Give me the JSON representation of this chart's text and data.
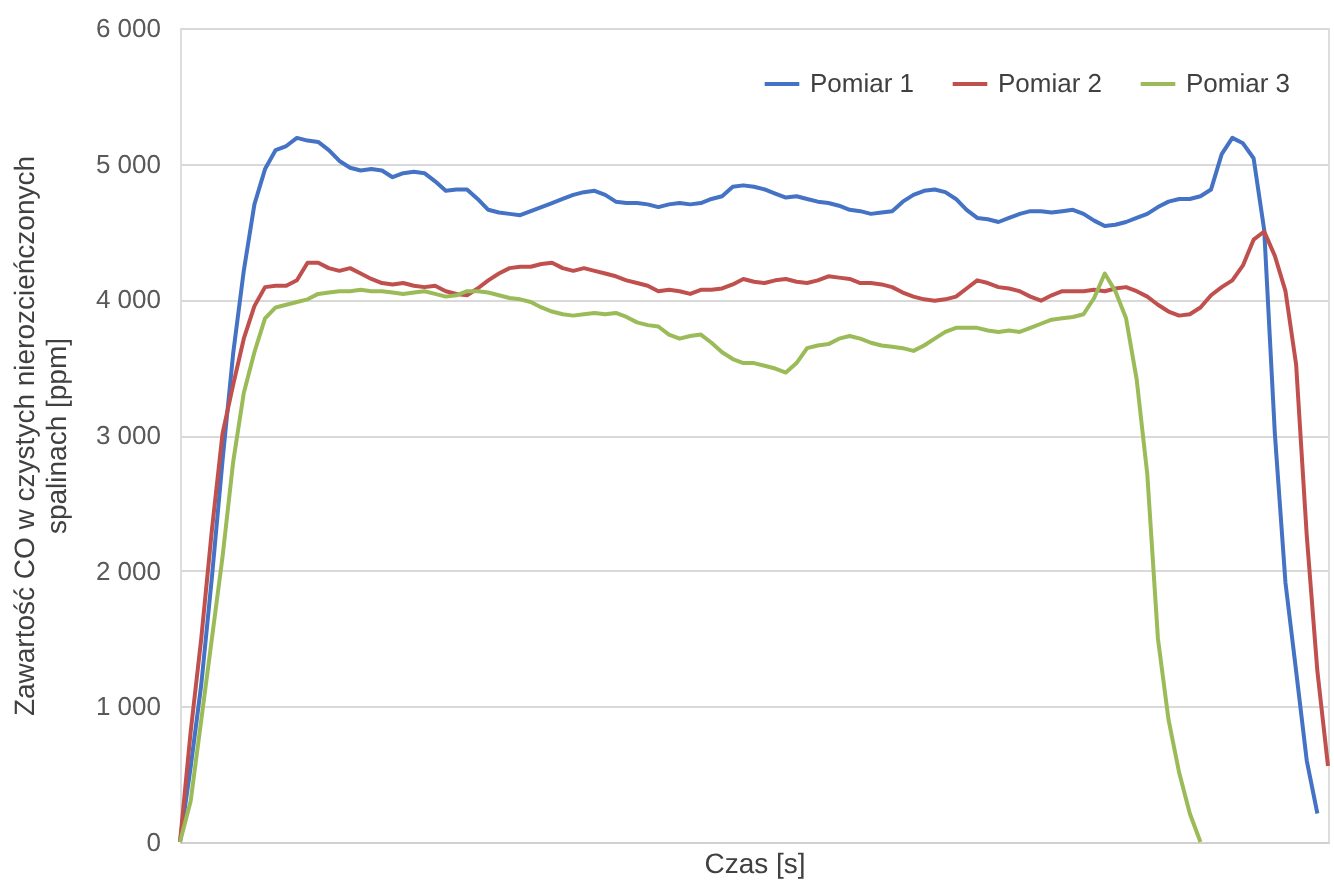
{
  "chart_data": {
    "type": "line",
    "xlabel": "Czas [s]",
    "ylabel": "Zawartość CO w czystych nierozcieńczonych spalinach [ppm]",
    "categories": [
      null,
      null,
      null,
      null,
      null,
      null,
      null,
      null,
      null,
      null,
      null,
      null,
      null,
      null,
      null,
      null,
      null,
      null,
      null,
      null,
      null,
      null,
      null,
      null,
      null,
      null,
      null,
      null,
      null,
      null,
      null,
      null,
      null,
      null,
      null,
      null,
      null,
      null,
      null,
      null,
      null,
      null,
      null,
      null,
      null,
      null,
      null,
      null,
      null,
      null,
      null,
      null,
      null,
      null,
      null,
      null,
      null,
      null,
      null,
      null,
      null,
      null,
      null,
      null,
      null,
      null,
      null,
      null,
      null,
      null,
      null,
      null,
      null,
      null,
      null,
      null,
      null,
      null,
      null,
      null,
      null,
      null,
      null,
      null,
      null,
      null,
      null,
      null,
      null,
      null,
      null,
      null,
      null,
      null,
      null,
      null,
      null,
      null,
      null,
      null,
      null,
      null,
      null,
      null,
      null,
      null,
      null,
      null,
      null
    ],
    "series": [
      {
        "name": "Pomiar 1",
        "color": "#4472c4",
        "values": [
          0,
          550,
          1160,
          1950,
          2810,
          3600,
          4210,
          4700,
          4960,
          5100,
          5130,
          5190,
          5170,
          5160,
          5100,
          5020,
          4970,
          4950,
          4960,
          4950,
          4900,
          4930,
          4940,
          4930,
          4870,
          4800,
          4810,
          4810,
          4740,
          4660,
          4640,
          4630,
          4620,
          4650,
          4680,
          4710,
          4740,
          4770,
          4790,
          4800,
          4770,
          4720,
          4710,
          4710,
          4700,
          4680,
          4700,
          4710,
          4700,
          4710,
          4740,
          4760,
          4830,
          4840,
          4830,
          4810,
          4780,
          4750,
          4760,
          4740,
          4720,
          4710,
          4690,
          4660,
          4650,
          4630,
          4640,
          4650,
          4720,
          4770,
          4800,
          4810,
          4790,
          4740,
          4660,
          4600,
          4590,
          4570,
          4600,
          4630,
          4650,
          4650,
          4640,
          4650,
          4660,
          4630,
          4580,
          4540,
          4550,
          4570,
          4600,
          4630,
          4680,
          4720,
          4740,
          4740,
          4760,
          4810,
          5070,
          5190,
          5150,
          5040,
          4510,
          3010,
          1910,
          1260,
          600,
          210,
          null
        ]
      },
      {
        "name": "Pomiar 2",
        "color": "#c0504d",
        "values": [
          0,
          810,
          1500,
          2300,
          3010,
          3370,
          3710,
          3950,
          4090,
          4100,
          4100,
          4140,
          4270,
          4270,
          4230,
          4210,
          4230,
          4190,
          4150,
          4120,
          4110,
          4120,
          4100,
          4090,
          4100,
          4060,
          4040,
          4030,
          4080,
          4140,
          4190,
          4230,
          4240,
          4240,
          4260,
          4270,
          4230,
          4210,
          4230,
          4210,
          4190,
          4170,
          4140,
          4120,
          4100,
          4060,
          4070,
          4060,
          4040,
          4070,
          4070,
          4080,
          4110,
          4150,
          4130,
          4120,
          4140,
          4150,
          4130,
          4120,
          4140,
          4170,
          4160,
          4150,
          4120,
          4120,
          4110,
          4090,
          4050,
          4020,
          4000,
          3990,
          4000,
          4020,
          4080,
          4140,
          4120,
          4090,
          4080,
          4060,
          4020,
          3990,
          4030,
          4060,
          4060,
          4060,
          4070,
          4060,
          4080,
          4090,
          4060,
          4020,
          3960,
          3910,
          3880,
          3890,
          3940,
          4030,
          4090,
          4140,
          4250,
          4440,
          4500,
          4320,
          4060,
          3520,
          2260,
          1260,
          560
        ]
      },
      {
        "name": "Pomiar 3",
        "color": "#9bbb59",
        "values": [
          0,
          300,
          900,
          1500,
          2100,
          2800,
          3310,
          3610,
          3860,
          3940,
          3960,
          3980,
          4000,
          4040,
          4050,
          4060,
          4060,
          4070,
          4060,
          4060,
          4050,
          4040,
          4050,
          4060,
          4040,
          4020,
          4030,
          4060,
          4060,
          4050,
          4030,
          4010,
          4000,
          3980,
          3940,
          3910,
          3890,
          3880,
          3890,
          3900,
          3890,
          3900,
          3870,
          3830,
          3810,
          3800,
          3740,
          3710,
          3730,
          3740,
          3680,
          3610,
          3560,
          3530,
          3530,
          3510,
          3490,
          3460,
          3530,
          3640,
          3660,
          3670,
          3710,
          3730,
          3710,
          3680,
          3660,
          3650,
          3640,
          3620,
          3660,
          3710,
          3760,
          3790,
          3790,
          3790,
          3770,
          3760,
          3770,
          3760,
          3790,
          3820,
          3850,
          3860,
          3870,
          3890,
          4010,
          4190,
          4060,
          3860,
          3410,
          2710,
          1500,
          900,
          510,
          210,
          0,
          null,
          null,
          null,
          null,
          null,
          null,
          null,
          null,
          null,
          null,
          null,
          null
        ]
      }
    ],
    "ylim": [
      0,
      6000
    ],
    "yticks": [
      0,
      {
        "value": 1000,
        "label": "1 000"
      },
      {
        "value": 2000,
        "label": "2 000"
      },
      {
        "value": 3000,
        "label": "3 000"
      },
      {
        "value": 4000,
        "label": "4 000"
      },
      {
        "value": 5000,
        "label": "5 000"
      },
      {
        "value": 6000,
        "label": "6 000"
      }
    ],
    "grid": "y",
    "legend": "top right",
    "marker": "none",
    "line_style": "solid"
  }
}
